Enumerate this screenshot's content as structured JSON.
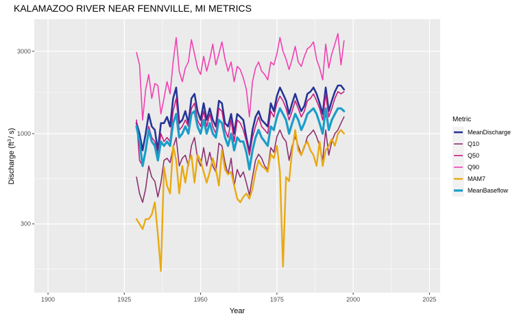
{
  "chart_data": {
    "type": "line",
    "title": "KALAMAZOO RIVER NEAR FENNVILLE, MI  METRICS",
    "xlabel": "Year",
    "ylabel_main": "Discharge (ft",
    "ylabel_sup": "3",
    "ylabel_tail": "/ s)",
    "x_ticks": [
      1900,
      1925,
      1950,
      1975,
      2000,
      2025
    ],
    "x_tick_labels": [
      "1900",
      "1925",
      "1950",
      "1975",
      "2000",
      "2025"
    ],
    "y_ticks": [
      300,
      1000,
      3000
    ],
    "y_tick_labels": [
      "300",
      "1000",
      "3000"
    ],
    "xlim": [
      1895.5,
      2028.5
    ],
    "ylim": [
      120,
      4600
    ],
    "y_scale": "log",
    "grid": true,
    "legend": {
      "title": "Metric",
      "position": "right",
      "entries": [
        "MeanDischarge",
        "Q10",
        "Q50",
        "Q90",
        "MAM7",
        "MeanBaseflow"
      ]
    },
    "x_start": 1929,
    "series": [
      {
        "name": "MeanDischarge",
        "color": "#253494",
        "width": 2.6,
        "values": [
          1150,
          1000,
          800,
          1000,
          1300,
          1100,
          1050,
          800,
          1150,
          1150,
          1250,
          1100,
          1600,
          1850,
          1150,
          1200,
          1350,
          1150,
          1600,
          1700,
          1350,
          1200,
          1500,
          1200,
          1400,
          1200,
          1100,
          1550,
          1500,
          1150,
          1100,
          1300,
          1000,
          1300,
          1250,
          1200,
          950,
          780,
          1050,
          1250,
          1350,
          1200,
          1150,
          1100,
          1500,
          1350,
          1650,
          1850,
          1700,
          1550,
          1300,
          1500,
          1700,
          1500,
          1350,
          1450,
          1700,
          1750,
          1850,
          1700,
          1500,
          1300,
          1850,
          1350,
          1550,
          1750,
          1900,
          1900,
          1800
        ]
      },
      {
        "name": "Q10",
        "color": "#8b2f6f",
        "width": 1.6,
        "values": [
          560,
          450,
          400,
          480,
          650,
          560,
          530,
          430,
          520,
          700,
          720,
          680,
          830,
          950,
          650,
          720,
          750,
          650,
          850,
          950,
          720,
          650,
          830,
          650,
          780,
          650,
          600,
          880,
          850,
          680,
          580,
          720,
          500,
          620,
          560,
          600,
          520,
          440,
          560,
          700,
          760,
          720,
          650,
          620,
          830,
          780,
          960,
          1050,
          950,
          900,
          700,
          850,
          960,
          850,
          750,
          830,
          960,
          1000,
          1050,
          960,
          850,
          700,
          1050,
          750,
          900,
          1000,
          1050,
          1150,
          1250
        ]
      },
      {
        "name": "Q50",
        "color": "#c51b7d",
        "width": 1.6,
        "values": [
          1200,
          700,
          650,
          800,
          1100,
          950,
          900,
          750,
          1000,
          900,
          950,
          900,
          1350,
          1600,
          1050,
          1100,
          1200,
          1100,
          1400,
          1500,
          1200,
          1100,
          1350,
          1100,
          1300,
          1100,
          1000,
          1400,
          1350,
          1050,
          950,
          1200,
          900,
          1200,
          1150,
          1050,
          900,
          750,
          950,
          1100,
          1250,
          1100,
          1050,
          1000,
          1350,
          1250,
          1500,
          1650,
          1550,
          1400,
          1200,
          1350,
          1550,
          1400,
          1250,
          1350,
          1550,
          1600,
          1700,
          1550,
          1400,
          1200,
          1700,
          1250,
          1400,
          1600,
          1750,
          1700,
          1750
        ]
      },
      {
        "name": "Q90",
        "color": "#f03fb1",
        "width": 1.6,
        "values": [
          2950,
          2500,
          1200,
          1800,
          2200,
          1600,
          1950,
          1900,
          1300,
          1600,
          2000,
          1700,
          2600,
          3600,
          2300,
          2000,
          2400,
          2600,
          3500,
          2900,
          2400,
          2200,
          2800,
          2300,
          2700,
          3300,
          2500,
          2900,
          3400,
          2700,
          2300,
          2600,
          2000,
          2450,
          2350,
          2100,
          1800,
          1250,
          2000,
          2400,
          2600,
          2300,
          2200,
          2050,
          2600,
          2500,
          2900,
          3600,
          3000,
          2700,
          2350,
          2700,
          3200,
          2600,
          2450,
          2800,
          3100,
          3200,
          3400,
          2700,
          2400,
          2050,
          3300,
          2400,
          2900,
          3300,
          3800,
          2500,
          3450
        ]
      },
      {
        "name": "MAM7",
        "color": "#eaa911",
        "width": 2.4,
        "values": [
          320,
          300,
          280,
          320,
          320,
          340,
          400,
          260,
          160,
          640,
          500,
          450,
          850,
          700,
          450,
          650,
          520,
          680,
          750,
          520,
          750,
          700,
          600,
          520,
          600,
          720,
          620,
          500,
          800,
          620,
          580,
          600,
          500,
          420,
          400,
          430,
          450,
          420,
          480,
          600,
          700,
          650,
          630,
          600,
          760,
          720,
          850,
          600,
          170,
          560,
          530,
          800,
          1050,
          800,
          750,
          850,
          900,
          800,
          750,
          650,
          900,
          650,
          800,
          850,
          930,
          850,
          1000,
          1050,
          1000
        ]
      },
      {
        "name": "MeanBaseflow",
        "color": "#1b9dc9",
        "width": 3.2,
        "values": [
          1100,
          900,
          650,
          800,
          1050,
          900,
          850,
          700,
          900,
          850,
          900,
          850,
          1150,
          1300,
          950,
          1000,
          1100,
          1000,
          1300,
          1350,
          1100,
          1000,
          1200,
          1000,
          1150,
          1000,
          950,
          1200,
          1150,
          950,
          850,
          1000,
          800,
          950,
          900,
          900,
          780,
          620,
          800,
          950,
          1050,
          950,
          900,
          850,
          1100,
          1050,
          1250,
          1400,
          1300,
          1200,
          1000,
          1150,
          1300,
          1200,
          1050,
          1150,
          1300,
          1350,
          1400,
          1300,
          1150,
          1000,
          1400,
          1050,
          1200,
          1300,
          1400,
          1400,
          1350
        ]
      }
    ]
  }
}
